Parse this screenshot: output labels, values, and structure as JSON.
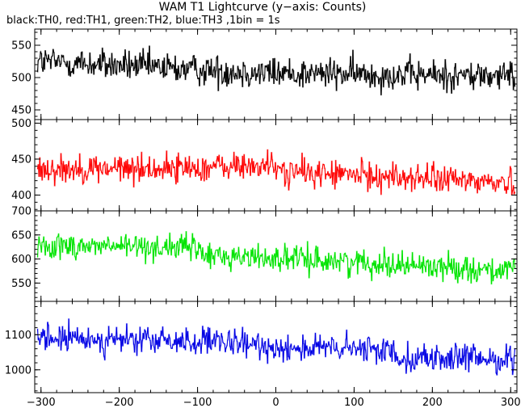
{
  "chart_data": {
    "type": "line",
    "title": "WAM T1 Lightcurve (y−axis: Counts)",
    "subtitle": "black:TH0, red:TH1, green:TH2, blue:TH3 ,1bin = 1s",
    "xlim": [
      -308,
      308
    ],
    "xticks": [
      -300,
      -200,
      -100,
      0,
      100,
      200,
      300
    ],
    "xtick_labels": [
      "−300",
      "−200",
      "−100",
      "0",
      "100",
      "200",
      "300"
    ],
    "bin_seconds": 1,
    "panels": [
      {
        "name": "TH0",
        "color": "#000000",
        "light_color": "#5a5a5a",
        "ylim": [
          435,
          575
        ],
        "yticks": [
          450,
          500,
          550
        ],
        "trend": [
          [
            -300,
            525
          ],
          [
            -100,
            512
          ],
          [
            0,
            507
          ],
          [
            300,
            502
          ]
        ],
        "noise": 17
      },
      {
        "name": "TH1",
        "color": "#ff0000",
        "light_color": "#ff6a6a",
        "ylim": [
          378,
          505
        ],
        "yticks": [
          400,
          450,
          500
        ],
        "trend": [
          [
            -300,
            437
          ],
          [
            -150,
            437
          ],
          [
            -5,
            441
          ],
          [
            5,
            433
          ],
          [
            300,
            417
          ]
        ],
        "noise": 14
      },
      {
        "name": "TH2",
        "color": "#00e000",
        "light_color": "#66ff66",
        "ylim": [
          512,
          700
        ],
        "yticks": [
          550,
          600,
          650,
          700
        ],
        "trend": [
          [
            -300,
            628
          ],
          [
            -100,
            624
          ],
          [
            -95,
            608
          ],
          [
            0,
            602
          ],
          [
            150,
            590
          ],
          [
            300,
            575
          ]
        ],
        "noise": 19
      },
      {
        "name": "TH3",
        "color": "#0000e0",
        "light_color": "#6a6aff",
        "ylim": [
          935,
          1195
        ],
        "yticks": [
          1000,
          1100
        ],
        "trend": [
          [
            -300,
            1090
          ],
          [
            -100,
            1080
          ],
          [
            0,
            1065
          ],
          [
            150,
            1055
          ],
          [
            160,
            1035
          ],
          [
            300,
            1030
          ]
        ],
        "noise": 28
      }
    ]
  }
}
